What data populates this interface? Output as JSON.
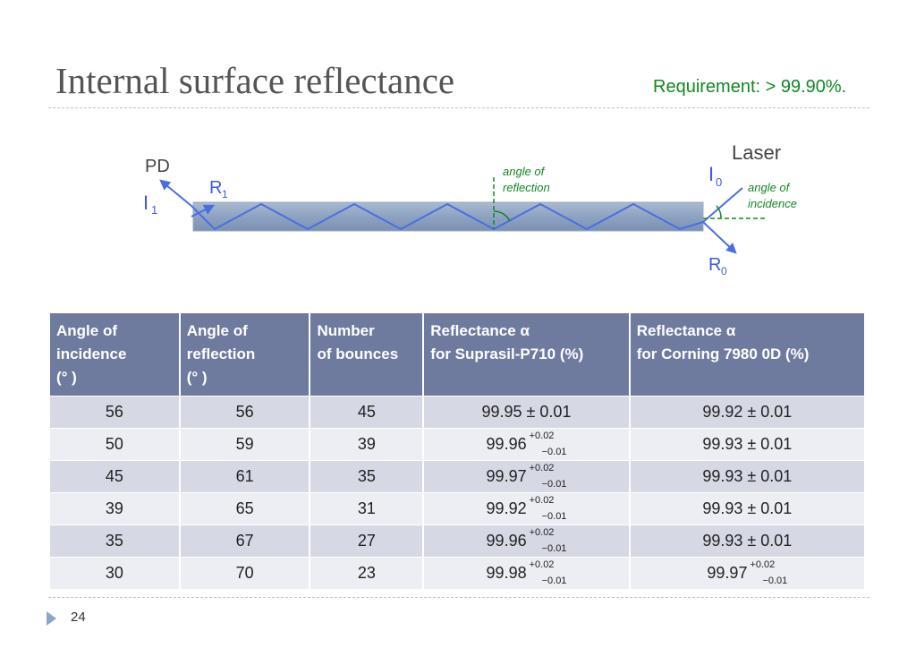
{
  "slide": {
    "title": "Internal surface reflectance",
    "requirement": "Requirement: > 99.90%.",
    "page_number": "24"
  },
  "diagram": {
    "pd": "PD",
    "laser": "Laser",
    "i1_letter": "I",
    "i1_sub": "1",
    "r1_letter": "R",
    "r1_sub": "1",
    "i0_letter": "I",
    "i0_sub": "0",
    "r0_letter": "R",
    "r0_sub": "0",
    "angle_reflection_line1": "angle of",
    "angle_reflection_line2": "reflection",
    "angle_incidence_line1": "angle of",
    "angle_incidence_line2": "incidence"
  },
  "table": {
    "headers": [
      {
        "line1": "Angle of",
        "line2": "incidence",
        "line3": "(° )"
      },
      {
        "line1": "Angle of",
        "line2": "reflection",
        "line3": "(° )"
      },
      {
        "line1": "Number",
        "line2": "of bounces",
        "line3": ""
      },
      {
        "line1": "Reflectance α",
        "line2": "for Suprasil-P710 (%)",
        "line3": ""
      },
      {
        "line1": "Reflectance α",
        "line2": "for Corning 7980 0D (%)",
        "line3": ""
      }
    ],
    "rows": [
      {
        "incidence": "56",
        "reflection": "56",
        "bounces": "45",
        "suprasil": "99.95 ± 0.01",
        "suprasil_plus": "",
        "suprasil_minus": "",
        "corning": "99.92 ± 0.01",
        "corning_plus": "",
        "corning_minus": ""
      },
      {
        "incidence": "50",
        "reflection": "59",
        "bounces": "39",
        "suprasil": "99.96",
        "suprasil_plus": "+0.02",
        "suprasil_minus": "−0.01",
        "corning": "99.93 ± 0.01",
        "corning_plus": "",
        "corning_minus": ""
      },
      {
        "incidence": "45",
        "reflection": "61",
        "bounces": "35",
        "suprasil": "99.97",
        "suprasil_plus": "+0.02",
        "suprasil_minus": "−0.01",
        "corning": "99.93 ± 0.01",
        "corning_plus": "",
        "corning_minus": ""
      },
      {
        "incidence": "39",
        "reflection": "65",
        "bounces": "31",
        "suprasil": "99.92",
        "suprasil_plus": "+0.02",
        "suprasil_minus": "−0.01",
        "corning": "99.93 ± 0.01",
        "corning_plus": "",
        "corning_minus": ""
      },
      {
        "incidence": "35",
        "reflection": "67",
        "bounces": "27",
        "suprasil": "99.96",
        "suprasil_plus": "+0.02",
        "suprasil_minus": "−0.01",
        "corning": "99.93 ± 0.01",
        "corning_plus": "",
        "corning_minus": ""
      },
      {
        "incidence": "30",
        "reflection": "70",
        "bounces": "23",
        "suprasil": "99.98",
        "suprasil_plus": "+0.02",
        "suprasil_minus": "−0.01",
        "corning": "99.97",
        "corning_plus": "+0.02",
        "corning_minus": "−0.01"
      }
    ]
  },
  "colors": {
    "title": "#555555",
    "requirement": "#118822",
    "header_bg": "#6f7b9e",
    "row_odd": "#d6d9e4",
    "row_even": "#eceef3",
    "beam": "#4a6ee0",
    "annotation": "#118822"
  },
  "icons": {
    "footer_arrow": "triangle-right-icon"
  }
}
